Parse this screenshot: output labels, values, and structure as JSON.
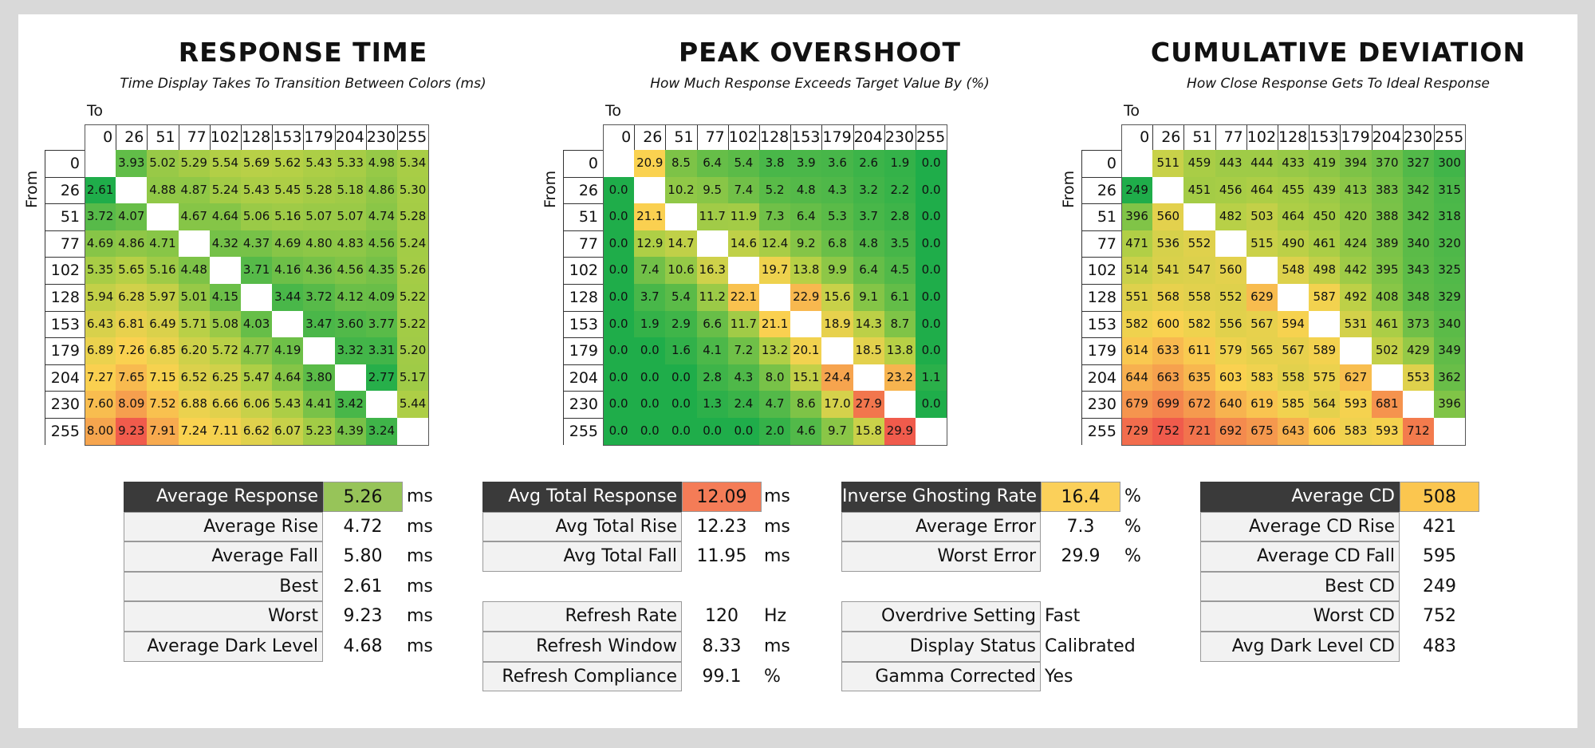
{
  "chart_data": [
    {
      "type": "heatmap",
      "title": "RESPONSE TIME",
      "subtitle": "Time Display Takes To Transition Between Colors (ms)",
      "xlabel": "To",
      "ylabel": "From",
      "levels": [
        0,
        26,
        51,
        77,
        102,
        128,
        153,
        179,
        204,
        230,
        255
      ],
      "color_scale": {
        "low": "#1fad4a",
        "high": "#f05b4c"
      },
      "values": [
        [
          null,
          "3.93",
          "5.02",
          "5.29",
          "5.54",
          "5.69",
          "5.62",
          "5.43",
          "5.33",
          "4.98",
          "5.34"
        ],
        [
          "2.61",
          null,
          "4.88",
          "4.87",
          "5.24",
          "5.43",
          "5.45",
          "5.28",
          "5.18",
          "4.86",
          "5.30"
        ],
        [
          "3.72",
          "4.07",
          null,
          "4.67",
          "4.64",
          "5.06",
          "5.16",
          "5.07",
          "5.07",
          "4.74",
          "5.28"
        ],
        [
          "4.69",
          "4.86",
          "4.71",
          null,
          "4.32",
          "4.37",
          "4.69",
          "4.80",
          "4.83",
          "4.56",
          "5.24"
        ],
        [
          "5.35",
          "5.65",
          "5.16",
          "4.48",
          null,
          "3.71",
          "4.16",
          "4.36",
          "4.56",
          "4.35",
          "5.26"
        ],
        [
          "5.94",
          "6.28",
          "5.97",
          "5.01",
          "4.15",
          null,
          "3.44",
          "3.72",
          "4.12",
          "4.09",
          "5.22"
        ],
        [
          "6.43",
          "6.81",
          "6.49",
          "5.71",
          "5.08",
          "4.03",
          null,
          "3.47",
          "3.60",
          "3.77",
          "5.22"
        ],
        [
          "6.89",
          "7.26",
          "6.85",
          "6.20",
          "5.72",
          "4.77",
          "4.19",
          null,
          "3.32",
          "3.31",
          "5.20"
        ],
        [
          "7.27",
          "7.65",
          "7.15",
          "6.52",
          "6.25",
          "5.47",
          "4.64",
          "3.80",
          null,
          "2.77",
          "5.17"
        ],
        [
          "7.60",
          "8.09",
          "7.52",
          "6.88",
          "6.66",
          "6.06",
          "5.43",
          "4.41",
          "3.42",
          null,
          "5.44"
        ],
        [
          "8.00",
          "9.23",
          "7.91",
          "7.24",
          "7.11",
          "6.62",
          "6.07",
          "5.23",
          "4.39",
          "3.24",
          null
        ]
      ]
    },
    {
      "type": "heatmap",
      "title": "PEAK OVERSHOOT",
      "subtitle": "How Much Response Exceeds Target Value By (%)",
      "xlabel": "To",
      "ylabel": "From",
      "levels": [
        0,
        26,
        51,
        77,
        102,
        128,
        153,
        179,
        204,
        230,
        255
      ],
      "color_scale": {
        "low": "#1fad4a",
        "high": "#f05b4c"
      },
      "values": [
        [
          null,
          "20.9",
          "8.5",
          "6.4",
          "5.4",
          "3.8",
          "3.9",
          "3.6",
          "2.6",
          "1.9",
          "0.0"
        ],
        [
          "0.0",
          null,
          "10.2",
          "9.5",
          "7.4",
          "5.2",
          "4.8",
          "4.3",
          "3.2",
          "2.2",
          "0.0"
        ],
        [
          "0.0",
          "21.1",
          null,
          "11.7",
          "11.9",
          "7.3",
          "6.4",
          "5.3",
          "3.7",
          "2.8",
          "0.0"
        ],
        [
          "0.0",
          "12.9",
          "14.7",
          null,
          "14.6",
          "12.4",
          "9.2",
          "6.8",
          "4.8",
          "3.5",
          "0.0"
        ],
        [
          "0.0",
          "7.4",
          "10.6",
          "16.3",
          null,
          "19.7",
          "13.8",
          "9.9",
          "6.4",
          "4.5",
          "0.0"
        ],
        [
          "0.0",
          "3.7",
          "5.4",
          "11.2",
          "22.1",
          null,
          "22.9",
          "15.6",
          "9.1",
          "6.1",
          "0.0"
        ],
        [
          "0.0",
          "1.9",
          "2.9",
          "6.6",
          "11.7",
          "21.1",
          null,
          "18.9",
          "14.3",
          "8.7",
          "0.0"
        ],
        [
          "0.0",
          "0.0",
          "1.6",
          "4.1",
          "7.2",
          "13.2",
          "20.1",
          null,
          "18.5",
          "13.8",
          "0.0"
        ],
        [
          "0.0",
          "0.0",
          "0.0",
          "2.8",
          "4.3",
          "8.0",
          "15.1",
          "24.4",
          null,
          "23.2",
          "1.1"
        ],
        [
          "0.0",
          "0.0",
          "0.0",
          "1.3",
          "2.4",
          "4.7",
          "8.6",
          "17.0",
          "27.9",
          null,
          "0.0"
        ],
        [
          "0.0",
          "0.0",
          "0.0",
          "0.0",
          "0.0",
          "2.0",
          "4.6",
          "9.7",
          "15.8",
          "29.9",
          null
        ]
      ]
    },
    {
      "type": "heatmap",
      "title": "CUMULATIVE DEVIATION",
      "subtitle": "How Close Response Gets To Ideal Response",
      "xlabel": "To",
      "ylabel": "From",
      "levels": [
        0,
        26,
        51,
        77,
        102,
        128,
        153,
        179,
        204,
        230,
        255
      ],
      "color_scale": {
        "low": "#1fad4a",
        "high": "#f05b4c"
      },
      "values": [
        [
          null,
          "511",
          "459",
          "443",
          "444",
          "433",
          "419",
          "394",
          "370",
          "327",
          "300"
        ],
        [
          "249",
          null,
          "451",
          "456",
          "464",
          "455",
          "439",
          "413",
          "383",
          "342",
          "315"
        ],
        [
          "396",
          "560",
          null,
          "482",
          "503",
          "464",
          "450",
          "420",
          "388",
          "342",
          "318"
        ],
        [
          "471",
          "536",
          "552",
          null,
          "515",
          "490",
          "461",
          "424",
          "389",
          "340",
          "320"
        ],
        [
          "514",
          "541",
          "547",
          "560",
          null,
          "548",
          "498",
          "442",
          "395",
          "343",
          "325"
        ],
        [
          "551",
          "568",
          "558",
          "552",
          "629",
          null,
          "587",
          "492",
          "408",
          "348",
          "329"
        ],
        [
          "582",
          "600",
          "582",
          "556",
          "567",
          "594",
          null,
          "531",
          "461",
          "373",
          "340"
        ],
        [
          "614",
          "633",
          "611",
          "579",
          "565",
          "567",
          "589",
          null,
          "502",
          "429",
          "349"
        ],
        [
          "644",
          "663",
          "635",
          "603",
          "583",
          "558",
          "575",
          "627",
          null,
          "553",
          "362"
        ],
        [
          "679",
          "699",
          "672",
          "640",
          "619",
          "585",
          "564",
          "593",
          "681",
          null,
          "396"
        ],
        [
          "729",
          "752",
          "721",
          "692",
          "675",
          "643",
          "606",
          "583",
          "593",
          "712",
          null
        ]
      ]
    }
  ],
  "summary": {
    "response": [
      {
        "label": "Average Response",
        "value": "5.26",
        "unit": "ms",
        "color": "#97c459"
      },
      {
        "label": "Average Rise",
        "value": "4.72",
        "unit": "ms"
      },
      {
        "label": "Average Fall",
        "value": "5.80",
        "unit": "ms"
      },
      {
        "label": "Best",
        "value": "2.61",
        "unit": "ms"
      },
      {
        "label": "Worst",
        "value": "9.23",
        "unit": "ms"
      },
      {
        "label": "Average Dark Level",
        "value": "4.68",
        "unit": "ms"
      }
    ],
    "total": [
      {
        "label": "Avg Total Response",
        "value": "12.09",
        "unit": "ms",
        "color": "#f47c57"
      },
      {
        "label": "Avg Total Rise",
        "value": "12.23",
        "unit": "ms"
      },
      {
        "label": "Avg Total Fall",
        "value": "11.95",
        "unit": "ms"
      }
    ],
    "refresh": [
      {
        "label": "Refresh Rate",
        "value": "120",
        "unit": "Hz"
      },
      {
        "label": "Refresh Window",
        "value": "8.33",
        "unit": "ms"
      },
      {
        "label": "Refresh Compliance",
        "value": "99.1",
        "unit": "%"
      }
    ],
    "ghosting": [
      {
        "label": "Inverse Ghosting Rate",
        "value": "16.4",
        "unit": "%",
        "color": "#fbd05a"
      },
      {
        "label": "Average Error",
        "value": "7.3",
        "unit": "%"
      },
      {
        "label": "Worst Error",
        "value": "29.9",
        "unit": "%"
      }
    ],
    "settings": [
      {
        "label": "Overdrive Setting",
        "value": "Fast"
      },
      {
        "label": "Display Status",
        "value": "Calibrated"
      },
      {
        "label": "Gamma Corrected",
        "value": "Yes"
      }
    ],
    "cd": [
      {
        "label": "Average CD",
        "value": "508",
        "color": "#fbc64f"
      },
      {
        "label": "Average CD Rise",
        "value": "421"
      },
      {
        "label": "Average CD Fall",
        "value": "595"
      },
      {
        "label": "Best CD",
        "value": "249"
      },
      {
        "label": "Worst CD",
        "value": "752"
      },
      {
        "label": "Avg Dark Level CD",
        "value": "483"
      }
    ]
  }
}
